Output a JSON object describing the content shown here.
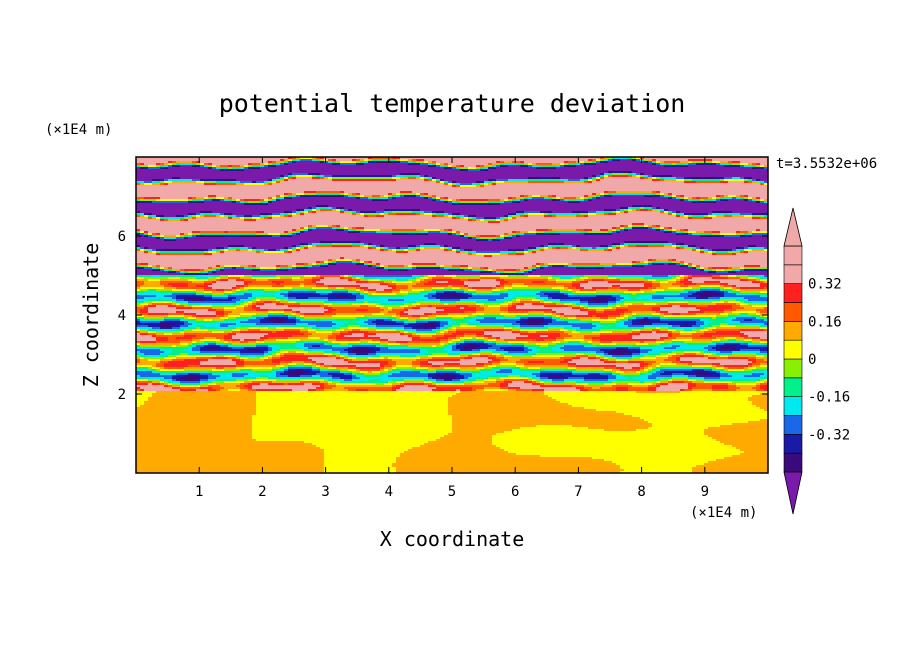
{
  "chart_data": {
    "type": "heatmap",
    "title": "potential temperature deviation",
    "xlabel": "X coordinate",
    "ylabel": "Z coordinate",
    "x_unit": "(×1E4 m)",
    "y_unit": "(×1E4 m)",
    "time_label": "t=3.5532e+06",
    "xlim": [
      0,
      10
    ],
    "ylim": [
      0,
      8
    ],
    "x_ticks": [
      1,
      2,
      3,
      4,
      5,
      6,
      7,
      8,
      9
    ],
    "y_ticks": [
      2,
      4,
      6
    ],
    "colorbar": {
      "levels": [
        -0.48,
        -0.4,
        -0.32,
        -0.24,
        -0.16,
        -0.08,
        0,
        0.08,
        0.16,
        0.24,
        0.32,
        0.4,
        0.48
      ],
      "tick_values": [
        -0.32,
        -0.16,
        0,
        0.16,
        0.32
      ],
      "tick_labels": [
        "-0.32",
        "-0.16",
        "0",
        "0.16",
        "0.32"
      ],
      "colors": [
        "#3a0a7a",
        "#1a1aa8",
        "#1a68e8",
        "#00e8f0",
        "#00f08a",
        "#88f000",
        "#ffff00",
        "#ffaa00",
        "#ff5a00",
        "#ff2020",
        "#f0a8a8"
      ],
      "under_color": "#7a1aaa",
      "over_color": "#f0a8a8"
    },
    "regions": [
      {
        "z_range": [
          0,
          2.1
        ],
        "pattern": "smooth",
        "values": [
          0,
          0.08
        ]
      },
      {
        "z_range": [
          2.1,
          5.0
        ],
        "pattern": "turbulent",
        "values": [
          -0.4,
          0.4
        ]
      },
      {
        "z_range": [
          5.0,
          8.0
        ],
        "pattern": "layered",
        "values": [
          -0.5,
          0.5
        ]
      }
    ]
  }
}
